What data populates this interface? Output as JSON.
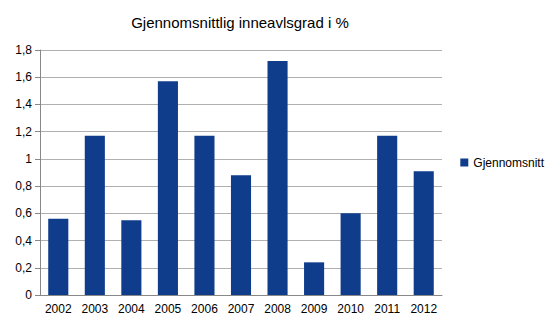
{
  "chart_data": {
    "type": "bar",
    "title": "Gjennomsnittlig inneavlsgrad i %",
    "categories": [
      "2002",
      "2003",
      "2004",
      "2005",
      "2006",
      "2007",
      "2008",
      "2009",
      "2010",
      "2011",
      "2012"
    ],
    "series": [
      {
        "name": "Gjennomsnitt",
        "color": "#0f3d8c",
        "values": [
          0.56,
          1.17,
          0.55,
          1.57,
          1.17,
          0.88,
          1.72,
          0.24,
          0.6,
          1.17,
          0.91
        ]
      }
    ],
    "ylim": [
      0,
      1.8
    ],
    "yticks": [
      0,
      {
        "value": 0.2,
        "label": "0,2"
      },
      {
        "value": 0.4,
        "label": "0,4"
      },
      {
        "value": 0.6,
        "label": "0,6"
      },
      {
        "value": 0.8,
        "label": "0,8"
      },
      1,
      {
        "value": 1.2,
        "label": "1,2"
      },
      {
        "value": 1.4,
        "label": "1,4"
      },
      {
        "value": 1.6,
        "label": "1,6"
      },
      {
        "value": 1.8,
        "label": "1,8"
      }
    ],
    "grid": true,
    "legend": "right"
  }
}
